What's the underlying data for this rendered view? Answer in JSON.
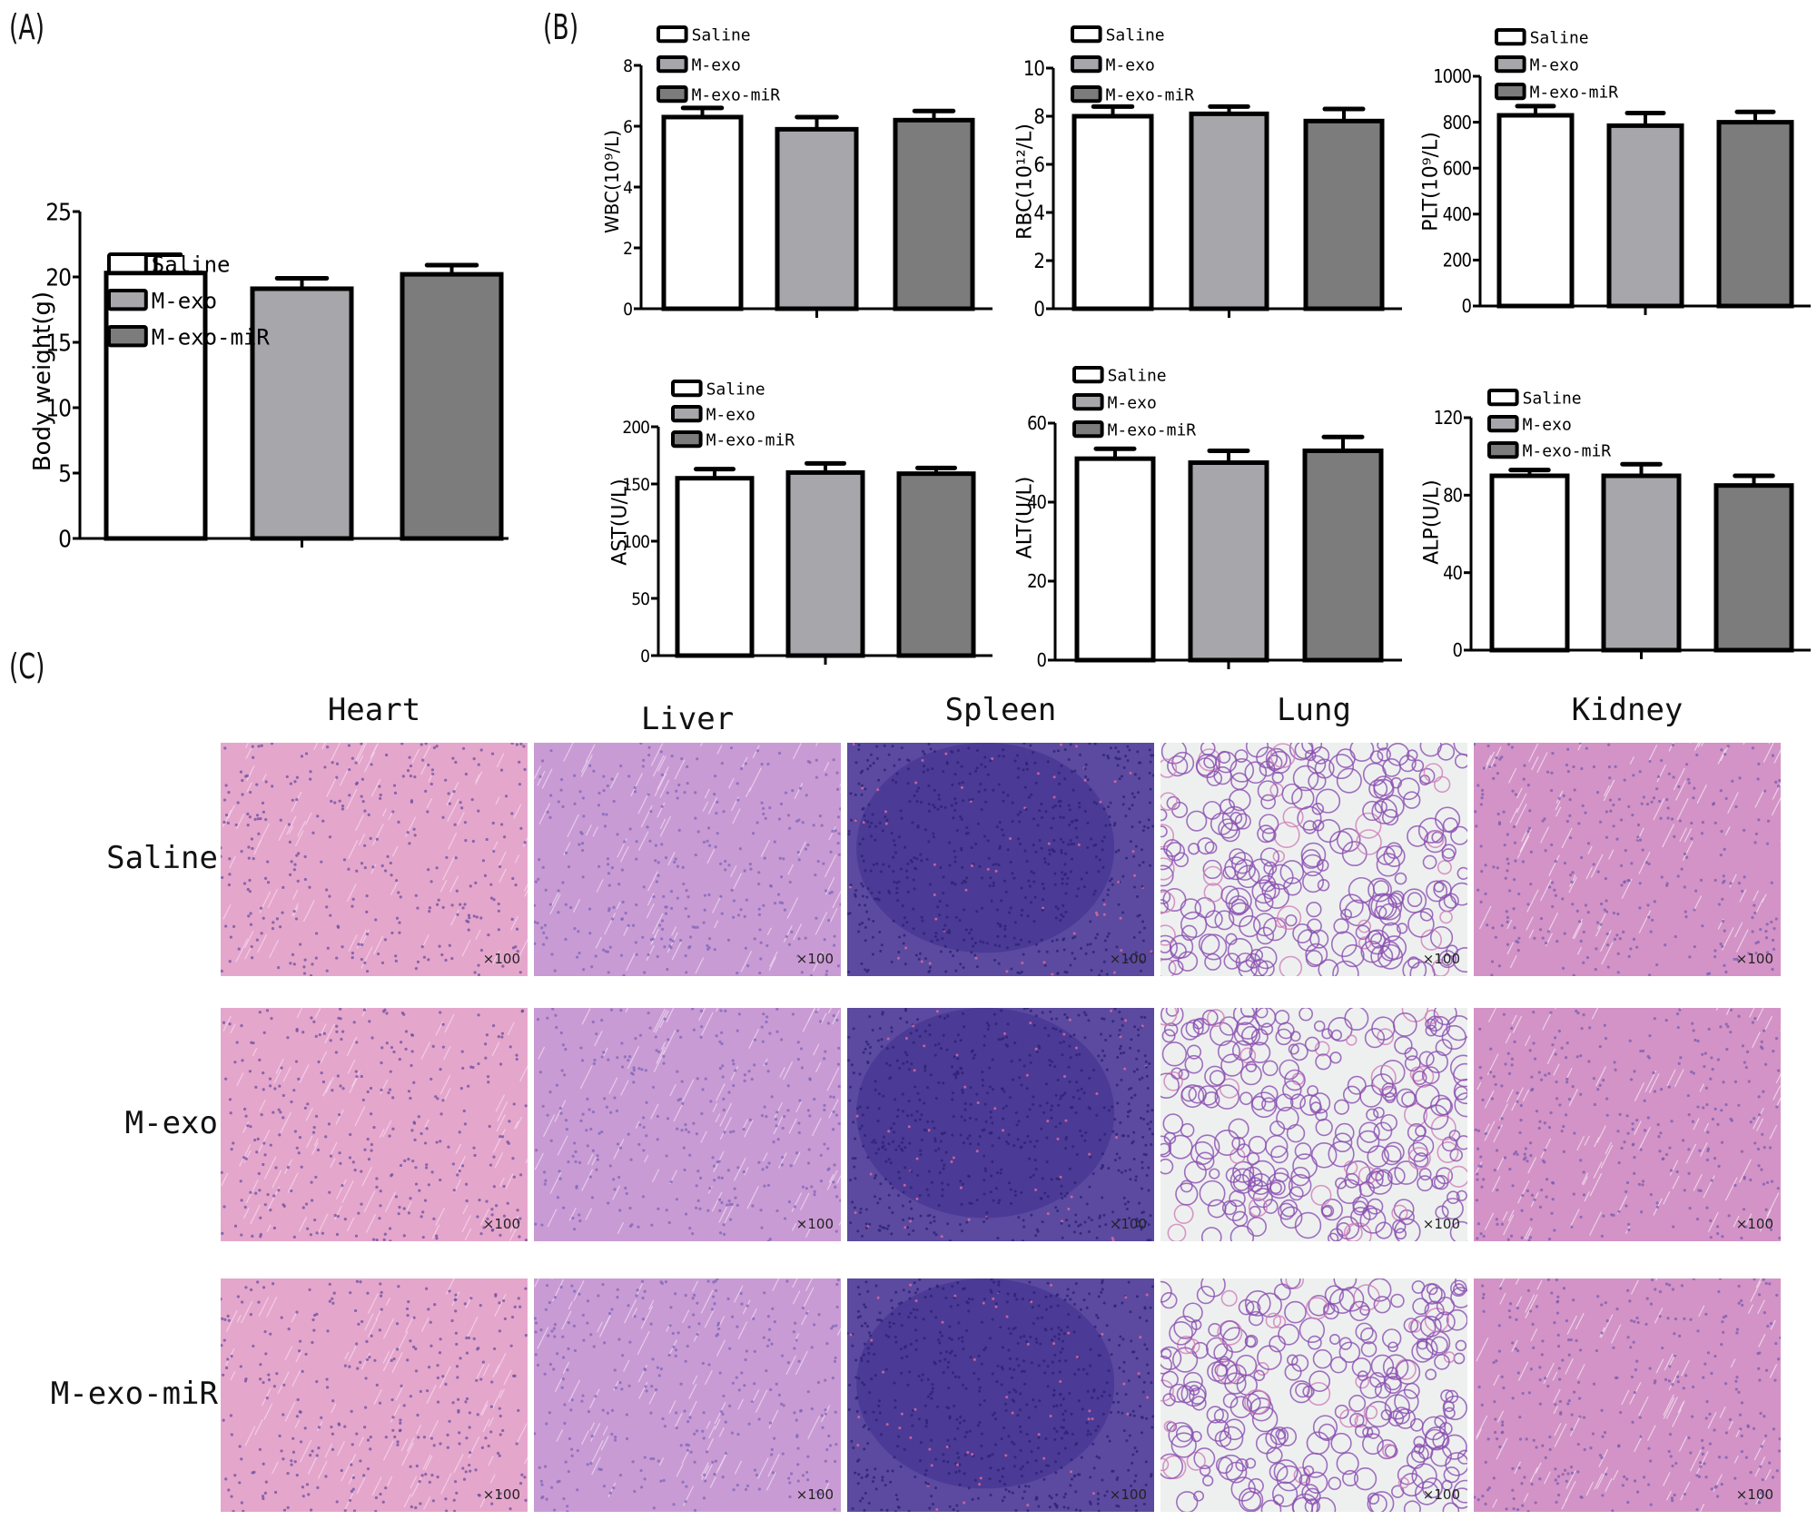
{
  "panels": {
    "a_label": "(A)",
    "b_label": "(B)",
    "c_label": "(C)"
  },
  "legend": [
    "Saline",
    "M-exo",
    "M-exo-miR"
  ],
  "colors": {
    "saline": "#ffffff",
    "m_exo": "#a6a6ab",
    "m_exo_mir": "#7c7c7c",
    "stroke": "#000000"
  },
  "chart_data": [
    {
      "id": "A",
      "type": "bar",
      "title": "",
      "xlabel": "",
      "ylabel": "Body weight(g)",
      "categories": [
        "Saline",
        "M-exo",
        "M-exo-miR"
      ],
      "values": [
        20.3,
        19.1,
        20.2
      ],
      "errors": [
        1.4,
        0.8,
        0.7
      ],
      "ylim": [
        0,
        25
      ],
      "yticks": [
        0,
        5,
        10,
        15,
        20,
        25
      ],
      "grid": false,
      "legend_position": "top-left"
    },
    {
      "id": "B-WBC",
      "type": "bar",
      "ylabel": "WBC(10⁹/L)",
      "categories": [
        "Saline",
        "M-exo",
        "M-exo-miR"
      ],
      "values": [
        6.3,
        5.9,
        6.2
      ],
      "errors": [
        0.3,
        0.4,
        0.3
      ],
      "ylim": [
        0,
        8
      ],
      "yticks": [
        0,
        2,
        4,
        6,
        8
      ],
      "grid": false,
      "legend_position": "top-left"
    },
    {
      "id": "B-RBC",
      "type": "bar",
      "ylabel": "RBC(10¹²/L)",
      "categories": [
        "Saline",
        "M-exo",
        "M-exo-miR"
      ],
      "values": [
        8.0,
        8.1,
        7.8
      ],
      "errors": [
        0.4,
        0.3,
        0.5
      ],
      "ylim": [
        0,
        10
      ],
      "yticks": [
        0,
        2,
        4,
        6,
        8,
        10
      ],
      "grid": false,
      "legend_position": "top-left"
    },
    {
      "id": "B-PLT",
      "type": "bar",
      "ylabel": "PLT(10⁹/L)",
      "categories": [
        "Saline",
        "M-exo",
        "M-exo-miR"
      ],
      "values": [
        830,
        785,
        800
      ],
      "errors": [
        40,
        55,
        45
      ],
      "ylim": [
        0,
        1000
      ],
      "yticks": [
        0,
        200,
        400,
        600,
        800,
        1000
      ],
      "grid": false,
      "legend_position": "top-left"
    },
    {
      "id": "B-AST",
      "type": "bar",
      "ylabel": "AST(U/L)",
      "categories": [
        "Saline",
        "M-exo",
        "M-exo-miR"
      ],
      "values": [
        155,
        160,
        159
      ],
      "errors": [
        8,
        8,
        5
      ],
      "ylim": [
        0,
        200
      ],
      "yticks": [
        0,
        50,
        100,
        150,
        200
      ],
      "grid": false,
      "legend_position": "top-left"
    },
    {
      "id": "B-ALT",
      "type": "bar",
      "ylabel": "ALT(U/L)",
      "categories": [
        "Saline",
        "M-exo",
        "M-exo-miR"
      ],
      "values": [
        51,
        50,
        53
      ],
      "errors": [
        2.5,
        3,
        3.5
      ],
      "ylim": [
        0,
        60
      ],
      "yticks": [
        0,
        20,
        40,
        60
      ],
      "grid": false,
      "legend_position": "top-left"
    },
    {
      "id": "B-ALP",
      "type": "bar",
      "ylabel": "ALP(U/L)",
      "categories": [
        "Saline",
        "M-exo",
        "M-exo-miR"
      ],
      "values": [
        90,
        90,
        85
      ],
      "errors": [
        3,
        6,
        5
      ],
      "ylim": [
        0,
        120
      ],
      "yticks": [
        0,
        40,
        80,
        120
      ],
      "grid": false,
      "legend_position": "top-left"
    }
  ],
  "histology": {
    "columns": [
      "Heart",
      "Liver",
      "Spleen",
      "Lung",
      "Kidney"
    ],
    "rows": [
      "Saline",
      "M-exo",
      "M-exo-miR"
    ],
    "magnification": "×100",
    "tile_styles": {
      "Heart": {
        "base": "#e5a6cc",
        "dot": "#6a4fa0",
        "streak": "#f4d6ea"
      },
      "Liver": {
        "base": "#c99bd4",
        "dot": "#7d66b8",
        "streak": "#ecd8f0"
      },
      "Spleen": {
        "base": "#5c4aa0",
        "dot": "#2e2478",
        "streak": "#d76a9a"
      },
      "Lung": {
        "base": "#eef0f0",
        "dot": "#8a4fb0",
        "streak": "#cf7fb8"
      },
      "Kidney": {
        "base": "#d393c6",
        "dot": "#7a5cb0",
        "streak": "#f2e0f0"
      }
    }
  }
}
